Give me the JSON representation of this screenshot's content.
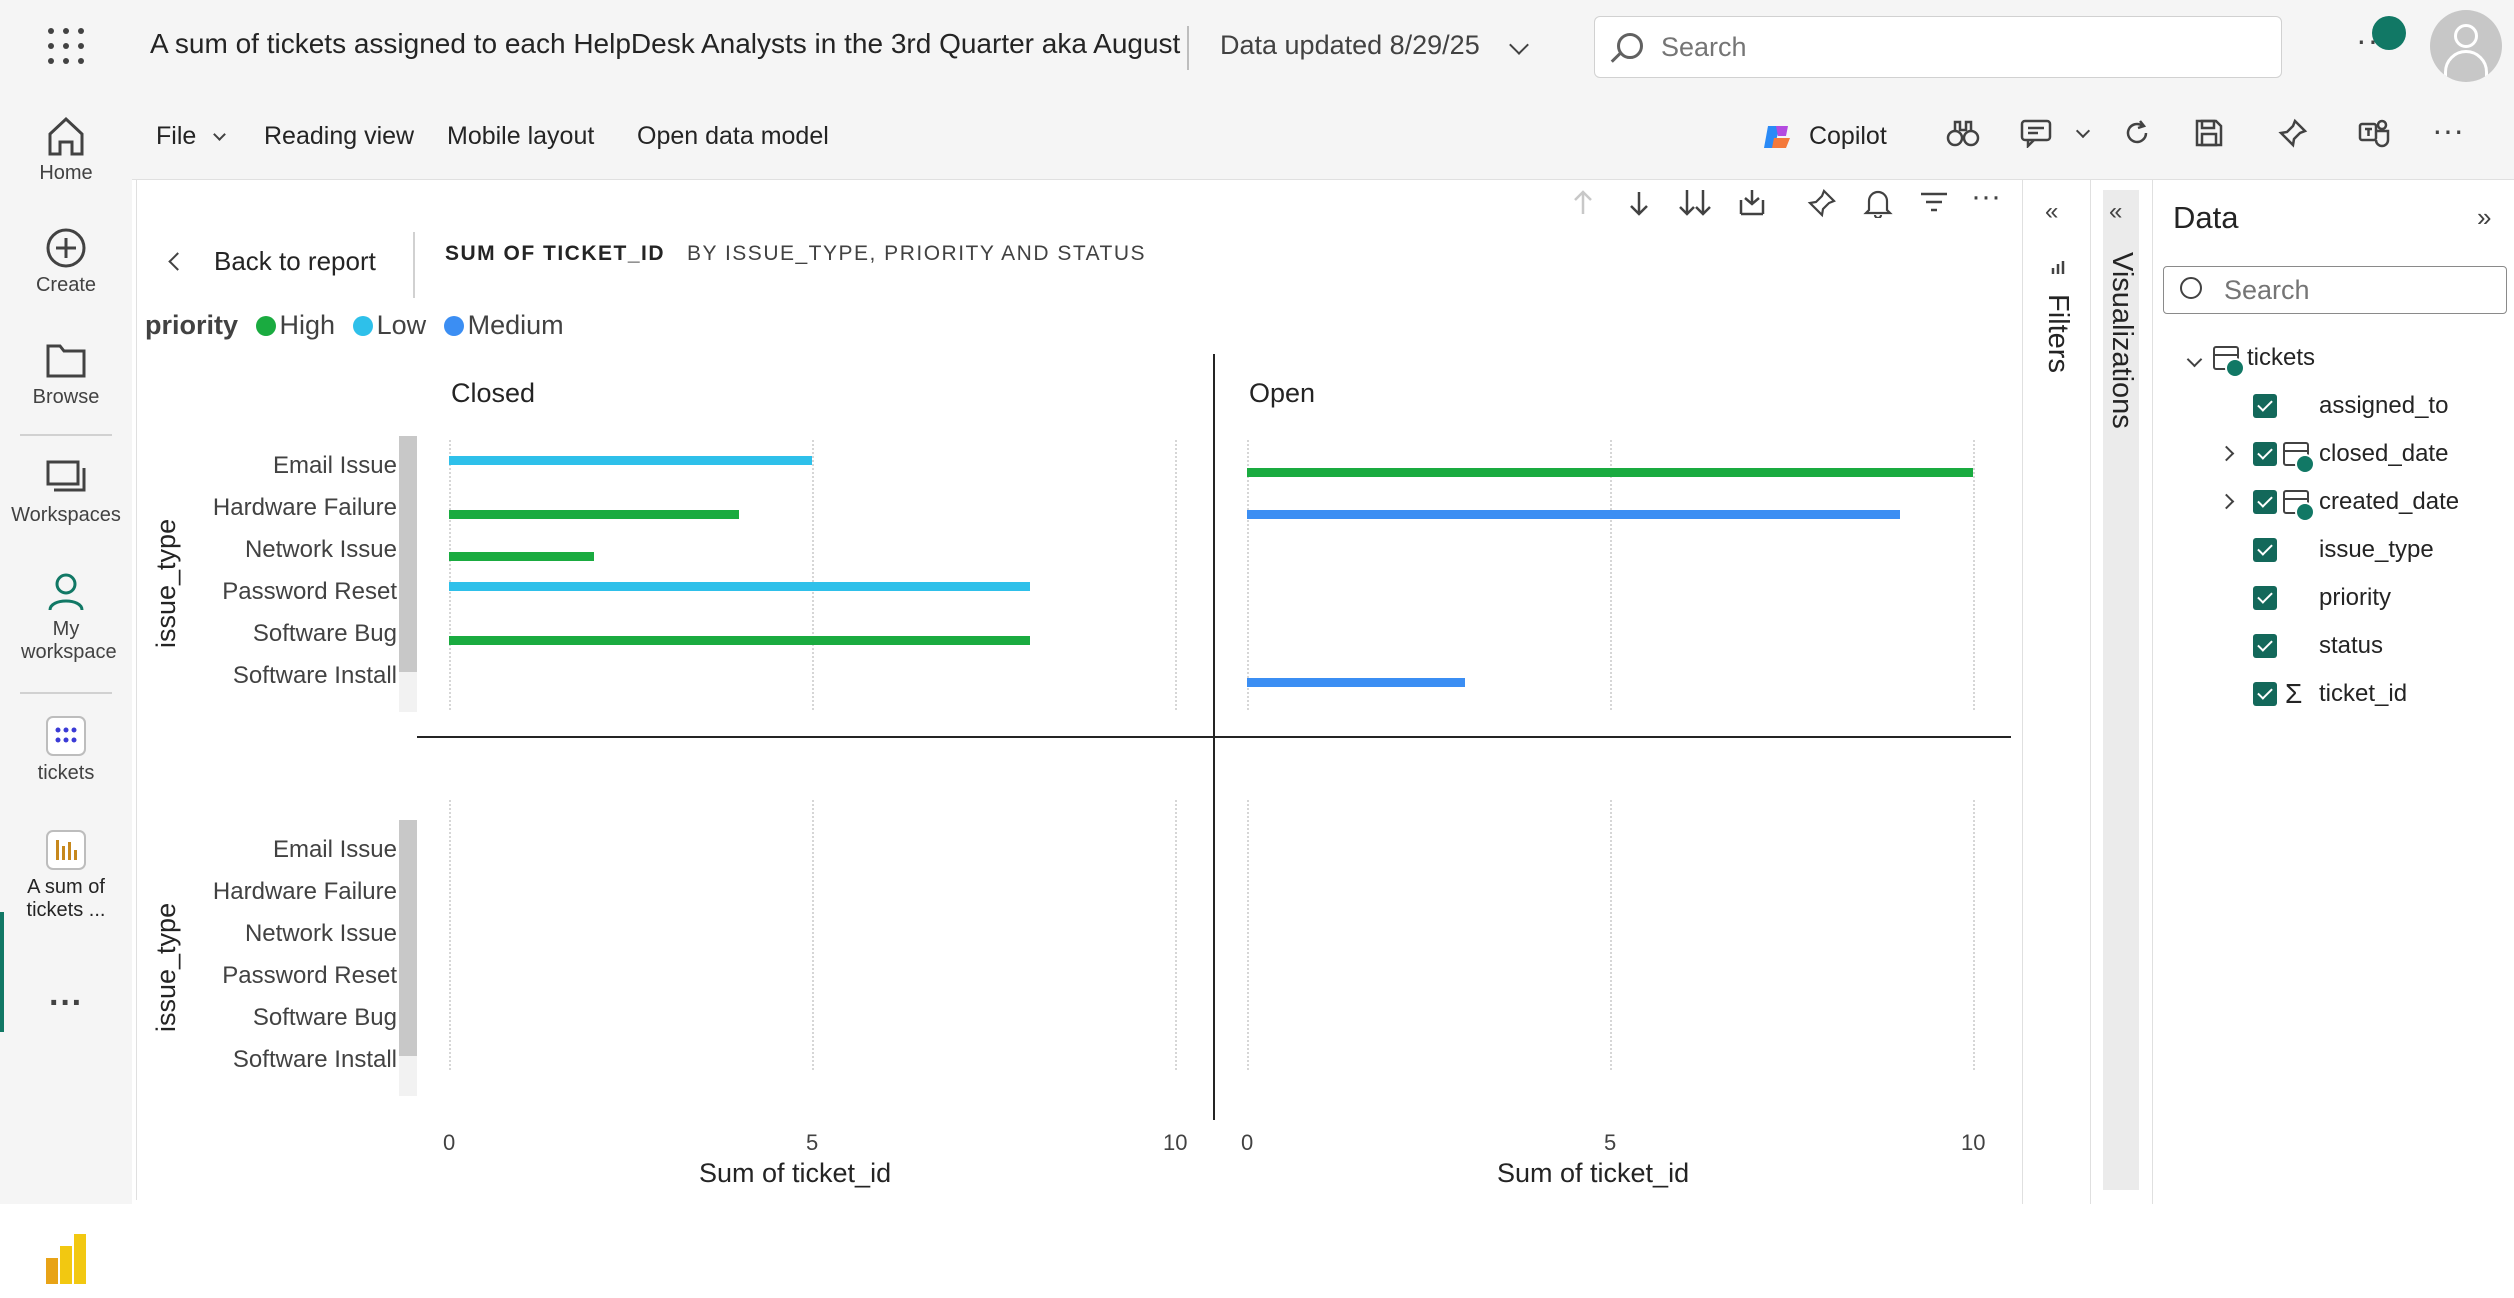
{
  "header": {
    "title": "A sum of tickets assigned to each HelpDesk Analysts in the 3rd Quarter aka August",
    "data_updated": "Data updated 8/29/25",
    "search_placeholder": "Search",
    "more": "···"
  },
  "nav": {
    "items": [
      {
        "label": "Home",
        "icon": "home-icon"
      },
      {
        "label": "Create",
        "icon": "plus-circle-icon"
      },
      {
        "label": "Browse",
        "icon": "folder-icon"
      },
      {
        "label": "Workspaces",
        "icon": "workspaces-icon"
      },
      {
        "label": "My workspace",
        "icon": "person-icon"
      },
      {
        "label": "tickets",
        "icon": "dataset-icon"
      },
      {
        "label": "A sum of tickets ...",
        "icon": "report-icon"
      }
    ],
    "more": "···"
  },
  "toolbar": {
    "file": "File",
    "reading_view": "Reading view",
    "mobile_layout": "Mobile layout",
    "open_data_model": "Open data model",
    "copilot": "Copilot",
    "more": "···"
  },
  "visual": {
    "back": "Back to report",
    "title": "SUM OF TICKET_ID",
    "subtitle": "BY ISSUE_TYPE, PRIORITY AND STATUS",
    "legend_title": "priority",
    "legend": [
      {
        "name": "High",
        "color": "#1aab40"
      },
      {
        "name": "Low",
        "color": "#2ec0ea"
      },
      {
        "name": "Medium",
        "color": "#3b8ef3"
      }
    ]
  },
  "chart_data": {
    "type": "bar",
    "orientation": "horizontal",
    "title": "SUM OF TICKET_ID BY ISSUE_TYPE, PRIORITY AND STATUS",
    "ylabel": "issue_type",
    "xlabel": "Sum of ticket_id",
    "xlim": [
      0,
      10
    ],
    "xticks": [
      "0",
      "5",
      "10"
    ],
    "categories": [
      "Email Issue",
      "Hardware Failure",
      "Network Issue",
      "Password Reset",
      "Software Bug",
      "Software Install"
    ],
    "columns": [
      "Closed",
      "Open"
    ],
    "series": [
      {
        "name": "High",
        "color": "#1aab40",
        "values": {
          "Closed": [
            0,
            4,
            2,
            0,
            8,
            0
          ],
          "Open": [
            10,
            0,
            0,
            0,
            0,
            0
          ]
        }
      },
      {
        "name": "Low",
        "color": "#2ec0ea",
        "values": {
          "Closed": [
            5,
            0,
            0,
            8,
            0,
            0
          ],
          "Open": [
            0,
            0,
            0,
            0,
            0,
            0
          ]
        }
      },
      {
        "name": "Medium",
        "color": "#3b8ef3",
        "values": {
          "Closed": [
            0,
            0,
            0,
            0,
            0,
            0
          ],
          "Open": [
            0,
            9,
            0,
            0,
            0,
            3
          ]
        }
      }
    ],
    "legend_position": "top-left",
    "grid": true
  },
  "panes": {
    "filters": "Filters",
    "visualizations": "Visualizations",
    "data_title": "Data",
    "data_search_placeholder": "Search",
    "table": "tickets",
    "fields": [
      "assigned_to",
      "closed_date",
      "created_date",
      "issue_type",
      "priority",
      "status",
      "ticket_id"
    ],
    "sigma": "Σ"
  }
}
